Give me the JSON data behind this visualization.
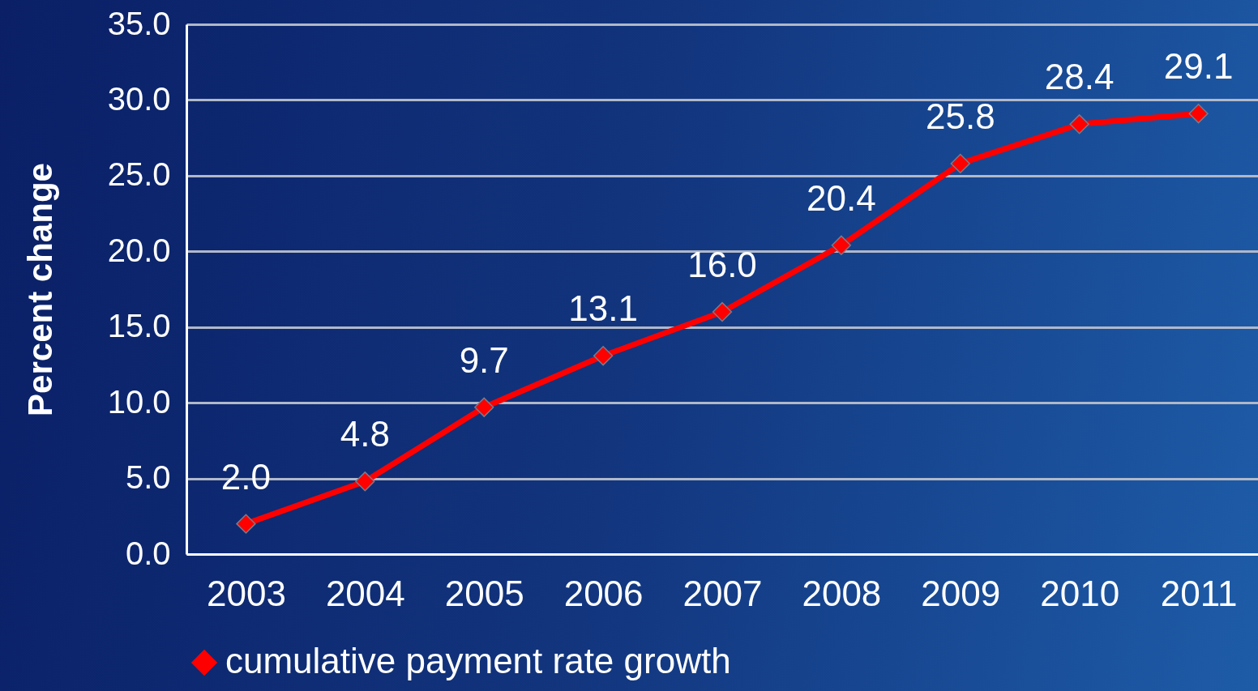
{
  "chart_data": {
    "type": "line",
    "ylabel": "Percent change",
    "categories": [
      "2003",
      "2004",
      "2005",
      "2006",
      "2007",
      "2008",
      "2009",
      "2010",
      "2011"
    ],
    "series": [
      {
        "name": "cumulative payment rate growth",
        "color": "#ff0000",
        "values": [
          2.0,
          4.8,
          9.7,
          13.1,
          16.0,
          20.4,
          25.8,
          28.4,
          29.1
        ],
        "value_labels": [
          "2.0",
          "4.8",
          "9.7",
          "13.1",
          "16.0",
          "20.4",
          "25.8",
          "28.4",
          "29.1"
        ]
      }
    ],
    "ylim": [
      0,
      35
    ],
    "yticks": [
      {
        "value": 0,
        "label": "0.0"
      },
      {
        "value": 5,
        "label": "5.0"
      },
      {
        "value": 10,
        "label": "10.0"
      },
      {
        "value": 15,
        "label": "15.0"
      },
      {
        "value": 20,
        "label": "20.0"
      },
      {
        "value": 25,
        "label": "25.0"
      },
      {
        "value": 30,
        "label": "30.0"
      },
      {
        "value": 35,
        "label": "35.0"
      }
    ],
    "grid": "y",
    "legend": "bottom",
    "marker": "diamond",
    "line_style": "solid"
  }
}
